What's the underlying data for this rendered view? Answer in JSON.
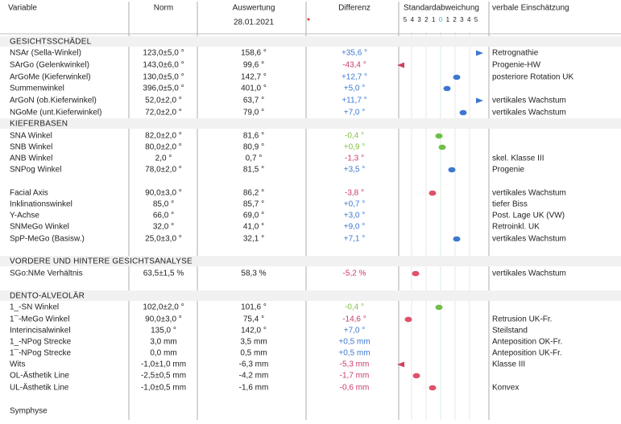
{
  "header": {
    "columns": [
      "Variable",
      "Norm",
      "Auswertung",
      "Differenz",
      "Standardabweichung",
      "verbale Einschätzung"
    ],
    "date": "28.01.2021",
    "scale": [
      "5",
      "4",
      "3",
      "2",
      "1",
      "0",
      "1",
      "2",
      "3",
      "4",
      "5"
    ]
  },
  "sections": [
    {
      "title": "GESICHTSSCHÄDEL",
      "rows": [
        {
          "variable": "NSAr (Sella-Winkel)",
          "norm": "123,0±5,0 °",
          "value": "158,6 °",
          "diff": "+35,6 °",
          "assessment": "Retrognathie"
        },
        {
          "variable": "SArGo (Gelenkwinkel)",
          "norm": "143,0±6,0 °",
          "value": "99,6 °",
          "diff": "-43,4 °",
          "assessment": "Progenie-HW"
        },
        {
          "variable": "ArGoMe (Kieferwinkel)",
          "norm": "130,0±5,0 °",
          "value": "142,7 °",
          "diff": "+12,7 °",
          "assessment": "posteriore Rotation UK"
        },
        {
          "variable": "Summenwinkel",
          "norm": "396,0±5,0 °",
          "value": "401,0 °",
          "diff": "+5,0 °"
        },
        {
          "variable": "ArGoN (ob.Kieferwinkel)",
          "norm": "52,0±2,0 °",
          "value": "63,7 °",
          "diff": "+11,7 °",
          "assessment": "vertikales Wachstum"
        },
        {
          "variable": "NGoMe (unt.Kieferwinkel)",
          "norm": "72,0±2,0 °",
          "value": "79,0 °",
          "diff": "+7,0 °",
          "assessment": "vertikales Wachstum"
        }
      ]
    },
    {
      "title": "KIEFERBASEN",
      "rows": [
        {
          "variable": "SNA Winkel",
          "norm": "82,0±2,0 °",
          "value": "81,6 °",
          "diff": "-0,4 °"
        },
        {
          "variable": "SNB Winkel",
          "norm": "80,0±2,0 °",
          "value": "80,9 °",
          "diff": "+0,9 °"
        },
        {
          "variable": "ANB Winkel",
          "norm": "2,0 °",
          "value": "0,7 °",
          "diff": "-1,3 °",
          "assessment": "skel. Klasse III"
        },
        {
          "variable": "SNPog Winkel",
          "norm": "78,0±2,0 °",
          "value": "81,5 °",
          "diff": "+3,5 °",
          "assessment": "Progenie"
        },
        {
          "variable": "Facial Axis",
          "norm": "90,0±3,0 °",
          "value": "86,2 °",
          "diff": "-3,8 °",
          "assessment": "vertikales Wachstum"
        },
        {
          "variable": "Inklinationswinkel",
          "norm": "85,0 °",
          "value": "85,7 °",
          "diff": "+0,7 °",
          "assessment": "tiefer Biss"
        },
        {
          "variable": "Y-Achse",
          "norm": "66,0 °",
          "value": "69,0 °",
          "diff": "+3,0 °",
          "assessment": "Post. Lage UK (VW)"
        },
        {
          "variable": "SNMeGo Winkel",
          "norm": "32,0 °",
          "value": "41,0 °",
          "diff": "+9,0 °",
          "assessment": "Retroinkl. UK"
        },
        {
          "variable": "SpP-MeGo (Basisw.)",
          "norm": "25,0±3,0 °",
          "value": "32,1 °",
          "diff": "+7,1 °",
          "assessment": "vertikales Wachstum"
        }
      ]
    },
    {
      "title": "VORDERE UND HINTERE GESICHTSANALYSE",
      "rows": [
        {
          "variable": "SGo:NMe Verhältnis",
          "norm": "63,5±1,5 %",
          "value": "58,3 %",
          "diff": "-5,2 %",
          "assessment": "vertikales Wachstum"
        }
      ]
    },
    {
      "title": "DENTO-ALVEOLÄR",
      "rows": [
        {
          "variable": "1_-SN Winkel",
          "norm": "102,0±2,0 °",
          "value": "101,6 °",
          "diff": "-0,4 °"
        },
        {
          "variable": "1¯-MeGo Winkel",
          "norm": "90,0±3,0 °",
          "value": "75,4 °",
          "diff": "-14,6 °",
          "assessment": "Retrusion UK-Fr."
        },
        {
          "variable": "Interincisalwinkel",
          "norm": "135,0 °",
          "value": "142,0 °",
          "diff": "+7,0 °",
          "assessment": "Steilstand"
        },
        {
          "variable": "1_-NPog Strecke",
          "norm": "3,0 mm",
          "value": "3,5 mm",
          "diff": "+0,5 mm",
          "assessment": "Anteposition OK-Fr."
        },
        {
          "variable": "1¯-NPog Strecke",
          "norm": "0,0 mm",
          "value": "0,5 mm",
          "diff": "+0,5 mm",
          "assessment": "Anteposition UK-Fr."
        },
        {
          "variable": "Wits",
          "norm": "-1,0±1,0 mm",
          "value": "-6,3 mm",
          "diff": "-5,3 mm",
          "assessment": "Klasse III"
        },
        {
          "variable": "OL-Ästhetik Line",
          "norm": "-2,5±0,5 mm",
          "value": "-4,2 mm",
          "diff": "-1,7 mm"
        },
        {
          "variable": "UL-Ästhetik Line",
          "norm": "-1,0±0,5 mm",
          "value": "-1,6 mm",
          "diff": "-0,6 mm",
          "assessment": "Konvex"
        },
        {
          "variable": "Symphyse"
        }
      ]
    }
  ]
}
